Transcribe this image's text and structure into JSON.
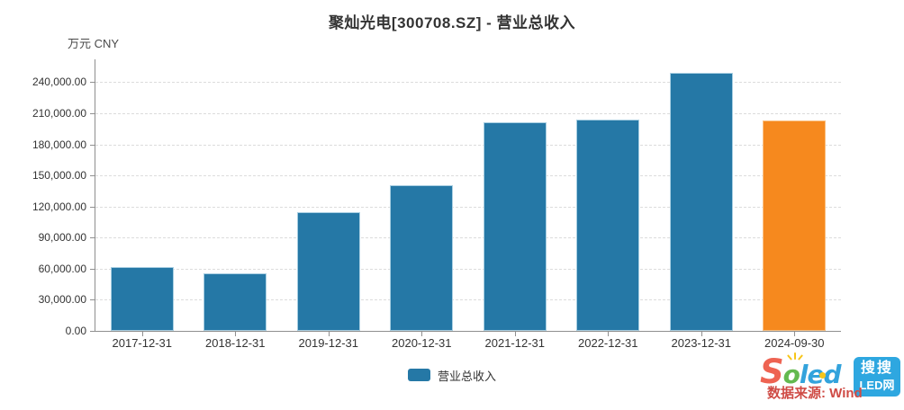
{
  "chart_data": {
    "type": "bar",
    "title": "聚灿光电[300708.SZ] - 营业总收入",
    "unit_label": "万元 CNY",
    "categories": [
      "2017-12-31",
      "2018-12-31",
      "2019-12-31",
      "2020-12-31",
      "2021-12-31",
      "2022-12-31",
      "2023-12-31",
      "2024-09-30"
    ],
    "series": [
      {
        "name": "营业总收入",
        "values": [
          61700,
          55500,
          114800,
          140700,
          201300,
          203600,
          249000,
          202800
        ],
        "color": "#2578a6",
        "border_color": "#a9cfe2",
        "highlight_index": 7,
        "highlight_color": "#f6891e",
        "highlight_border_color": "#fac183"
      }
    ],
    "ylim": [
      0,
      262000
    ],
    "yticks": [
      0,
      30000,
      60000,
      90000,
      120000,
      150000,
      180000,
      210000,
      240000
    ],
    "ytick_labels": [
      "0.00",
      "30,000.00",
      "60,000.00",
      "90,000.00",
      "120,000.00",
      "150,000.00",
      "180,000.00",
      "210,000.00",
      "240,000.00"
    ],
    "grid": "horizontal-dashed",
    "legend_position": "bottom-center"
  },
  "legend": {
    "label": "营业总收入"
  },
  "watermark": {
    "logo_letters": [
      {
        "ch": "S",
        "color": "#ee6352"
      },
      {
        "ch": "o",
        "color": "#63b94f"
      },
      {
        "ch": "l",
        "color": "#33a3dc"
      },
      {
        "ch": "e",
        "color": "#33a3dc"
      },
      {
        "ch": "d",
        "color": "#33a3dc"
      }
    ],
    "badge": {
      "line1": "搜搜",
      "line2": "LED网",
      "bg_color": "#2ea7e0"
    },
    "source_text": "数据来源: Wind",
    "source_color": "#cf4b45"
  }
}
